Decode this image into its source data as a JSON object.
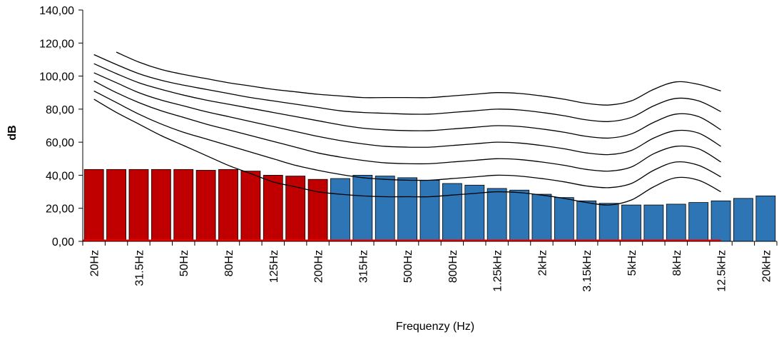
{
  "chart_data": {
    "type": "bar",
    "title": "",
    "xlabel": "Frequenzy (Hz)",
    "ylabel": "dB",
    "ylim": [
      0,
      140
    ],
    "yticks": [
      0,
      20,
      40,
      60,
      80,
      100,
      120,
      140
    ],
    "ytick_labels": [
      "0,00",
      "20,00",
      "40,00",
      "60,00",
      "80,00",
      "100,00",
      "120,00",
      "140,00"
    ],
    "grid": false,
    "legend": "none",
    "categories": [
      "20Hz",
      "25Hz",
      "31.5Hz",
      "40Hz",
      "50Hz",
      "63Hz",
      "80Hz",
      "100Hz",
      "125Hz",
      "160Hz",
      "200Hz",
      "250Hz",
      "315Hz",
      "400Hz",
      "500Hz",
      "630Hz",
      "800Hz",
      "1kHz",
      "1.25kHz",
      "1.6kHz",
      "2kHz",
      "2.5kHz",
      "3.15kHz",
      "4kHz",
      "5kHz",
      "6.3kHz",
      "8kHz",
      "10kHz",
      "12.5kHz",
      "16kHz",
      "20kHz"
    ],
    "visible_tick_labels": [
      "20Hz",
      "31.5Hz",
      "50Hz",
      "80Hz",
      "125Hz",
      "200Hz",
      "315Hz",
      "500Hz",
      "800Hz",
      "1.25kHz",
      "2kHz",
      "3.15kHz",
      "5kHz",
      "8kHz",
      "12.5kHz",
      "20kHz"
    ],
    "series": [
      {
        "color": "#c00000",
        "values": [
          43.5,
          43.5,
          43.5,
          43.5,
          43.5,
          43,
          43.5,
          42.5,
          40,
          39.5,
          37.5,
          null,
          null,
          null,
          null,
          null,
          null,
          null,
          null,
          null,
          null,
          null,
          null,
          null,
          null,
          null,
          null,
          null,
          null,
          null,
          null
        ]
      },
      {
        "color": "#2e75b6",
        "values": [
          null,
          null,
          null,
          null,
          null,
          null,
          null,
          null,
          null,
          null,
          null,
          38,
          40,
          39.5,
          38.5,
          37,
          35,
          34,
          32,
          31,
          28.5,
          26.5,
          24.5,
          23,
          22,
          22,
          22.5,
          23.5,
          24.5,
          26,
          27.5
        ]
      }
    ],
    "baseline_line": {
      "color": "#ff0000",
      "value": 0,
      "from": "20Hz",
      "to": "12.5kHz"
    },
    "contours": {
      "color": "#000000",
      "x_categories": [
        "20Hz",
        "25Hz",
        "31.5Hz",
        "40Hz",
        "50Hz",
        "63Hz",
        "80Hz",
        "100Hz",
        "125Hz",
        "160Hz",
        "200Hz",
        "250Hz",
        "315Hz",
        "400Hz",
        "500Hz",
        "630Hz",
        "800Hz",
        "1kHz",
        "1.25kHz",
        "1.6kHz",
        "2kHz",
        "2.5kHz",
        "3.15kHz",
        "4kHz",
        "5kHz",
        "6.3kHz",
        "8kHz",
        "10kHz",
        "12.5kHz"
      ],
      "curves": [
        [
          86,
          78,
          71,
          64,
          58,
          52,
          46,
          41,
          36,
          33,
          30,
          28.5,
          27.5,
          27,
          27,
          27,
          28,
          29,
          30,
          29.5,
          28,
          26,
          23.5,
          22,
          25,
          33,
          38.5,
          37,
          30
        ],
        [
          91,
          84,
          77,
          71,
          66,
          62,
          58,
          54,
          50,
          46,
          43,
          40.5,
          38.5,
          37.5,
          37,
          37,
          38,
          39,
          40,
          39.5,
          38,
          36,
          33.5,
          32.5,
          35,
          43,
          48,
          46,
          39
        ],
        [
          97,
          90,
          84,
          79,
          75,
          71,
          67.5,
          64,
          60.5,
          57,
          53.5,
          51,
          49,
          47.5,
          47,
          47,
          48,
          49,
          50,
          49.5,
          48,
          46,
          43.5,
          42.5,
          45,
          53,
          57.5,
          56,
          48
        ],
        [
          102,
          96,
          90,
          85.5,
          82,
          78.5,
          75.5,
          72.5,
          69.5,
          66.5,
          63.5,
          61,
          59,
          57.5,
          57,
          57,
          58,
          59,
          60,
          59.5,
          58,
          56,
          53.5,
          52.5,
          55,
          62.5,
          67,
          65.5,
          57.5
        ],
        [
          107.5,
          101.5,
          96,
          92,
          88.5,
          85.5,
          83,
          80.5,
          78,
          75.5,
          73,
          70.5,
          68.5,
          67.5,
          67,
          67,
          68,
          69,
          70,
          69.5,
          68,
          66,
          63.5,
          62.5,
          65,
          72,
          77,
          75.5,
          67.5
        ],
        [
          113,
          107,
          101.5,
          97.5,
          94.5,
          92,
          89.5,
          87,
          85,
          83,
          81,
          79,
          78,
          77.5,
          77,
          77,
          78,
          79,
          80,
          79.5,
          78,
          76,
          73.5,
          72.5,
          75,
          82,
          86.5,
          85,
          78.5
        ],
        [
          null,
          114.5,
          108.5,
          104,
          101,
          98.5,
          96,
          94,
          92,
          90.5,
          89,
          88,
          87,
          87,
          87,
          87,
          88,
          89,
          90,
          89.5,
          88,
          86,
          83.5,
          82.5,
          85,
          92,
          96.5,
          95,
          91
        ]
      ]
    }
  }
}
